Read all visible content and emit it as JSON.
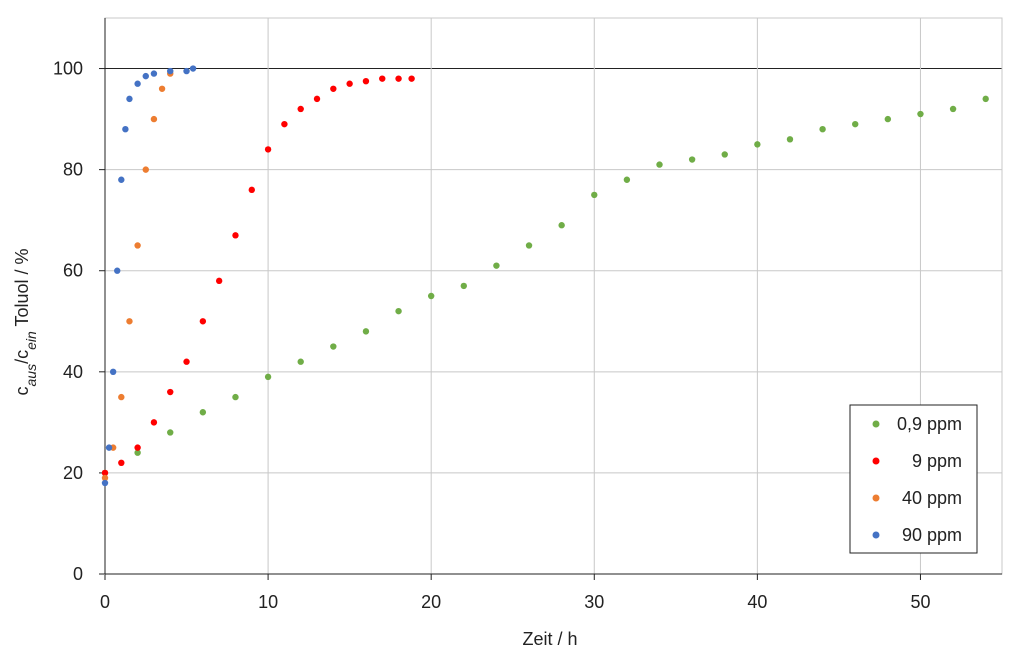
{
  "chart_data": {
    "type": "scatter",
    "x_label": "Zeit / h",
    "y_label": [
      {
        "text": "c"
      },
      {
        "text": "aus",
        "sub": true
      },
      {
        "text": "/c"
      },
      {
        "text": "ein",
        "sub": true
      },
      {
        "text": " Toluol / %"
      }
    ],
    "xlim": [
      0,
      55
    ],
    "xticks": [
      0,
      10,
      20,
      30,
      40,
      50
    ],
    "ylim": [
      0,
      110
    ],
    "yticks": [
      0,
      20,
      40,
      60,
      80,
      100
    ],
    "grid": true,
    "reference_line": 100,
    "legend": "lower right",
    "series": [
      {
        "name": "0,9 ppm",
        "color": "#70ad47",
        "x": [
          0,
          2,
          4,
          6,
          8,
          10,
          12,
          14,
          16,
          18,
          20,
          22,
          24,
          26,
          28,
          30,
          32,
          34,
          36,
          38,
          40,
          42,
          44,
          46,
          48,
          50,
          52,
          54
        ],
        "y": [
          20,
          24,
          28,
          32,
          35,
          39,
          42,
          45,
          48,
          52,
          55,
          57,
          61,
          65,
          69,
          75,
          78,
          81,
          82,
          83,
          85,
          86,
          88,
          89,
          90,
          91,
          92,
          94
        ]
      },
      {
        "name": "9 ppm",
        "color": "#ff0000",
        "x": [
          0,
          1,
          2,
          3,
          4,
          5,
          6,
          7,
          8,
          9,
          10,
          11,
          12,
          13,
          14,
          15,
          16,
          17,
          18,
          18.8
        ],
        "y": [
          20,
          22,
          25,
          30,
          36,
          42,
          50,
          58,
          67,
          76,
          84,
          89,
          92,
          94,
          96,
          97,
          97.5,
          98,
          98,
          98
        ]
      },
      {
        "name": "40 ppm",
        "color": "#ed7d31",
        "x": [
          0,
          0.5,
          1,
          1.5,
          2,
          2.5,
          3,
          3.5,
          4
        ],
        "y": [
          19,
          25,
          35,
          50,
          65,
          80,
          90,
          96,
          99
        ]
      },
      {
        "name": "90 ppm",
        "color": "#4472c4",
        "x": [
          0,
          0.25,
          0.5,
          0.75,
          1,
          1.25,
          1.5,
          2,
          2.5,
          3,
          4,
          5,
          5.4
        ],
        "y": [
          18,
          25,
          40,
          60,
          78,
          88,
          94,
          97,
          98.5,
          99,
          99.5,
          99.5,
          100
        ]
      }
    ]
  }
}
